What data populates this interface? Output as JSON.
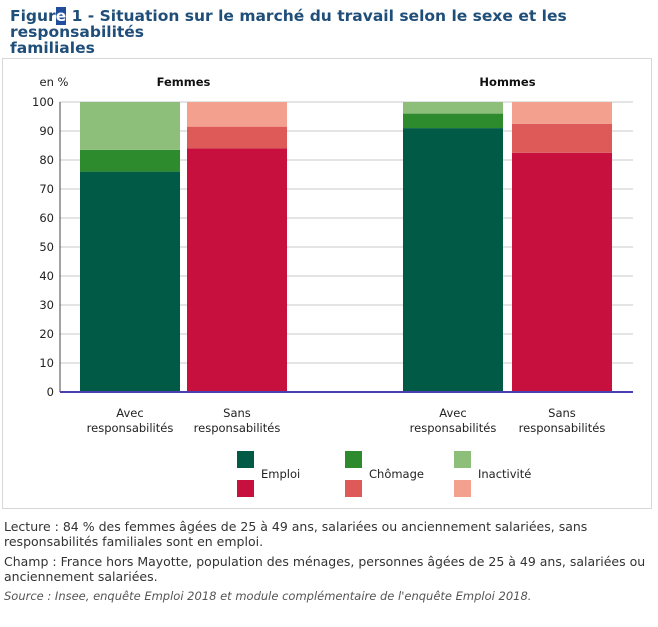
{
  "figure": {
    "title_prefix": "Figur",
    "title_highlight": "e",
    "title_rest": " 1 - Situation sur le marché du travail selon le sexe et les responsabilités",
    "title_line2": "familiales"
  },
  "chart_data": {
    "type": "bar",
    "stacked": true,
    "ylabel": "en %",
    "ylim": [
      0,
      100
    ],
    "yticks": [
      0,
      10,
      20,
      30,
      40,
      50,
      60,
      70,
      80,
      90,
      100
    ],
    "grid": true,
    "legend_position": "bottom",
    "groups": [
      {
        "label": "Femmes",
        "bars": [
          {
            "label_line1": "Avec",
            "label_line2": "responsabilités",
            "segments": [
              {
                "name": "Emploi",
                "value": 76,
                "color": "#005a46"
              },
              {
                "name": "Chômage",
                "value": 7.5,
                "color": "#2d8a2d"
              },
              {
                "name": "Inactivité",
                "value": 16.5,
                "color": "#8dbf7a"
              }
            ]
          },
          {
            "label_line1": "Sans",
            "label_line2": "responsabilités",
            "segments": [
              {
                "name": "Emploi",
                "value": 84,
                "color": "#c8103f"
              },
              {
                "name": "Chômage",
                "value": 7.5,
                "color": "#dd5a58"
              },
              {
                "name": "Inactivité",
                "value": 8.5,
                "color": "#f4a08e"
              }
            ]
          }
        ]
      },
      {
        "label": "Hommes",
        "bars": [
          {
            "label_line1": "Avec",
            "label_line2": "responsabilités",
            "segments": [
              {
                "name": "Emploi",
                "value": 91,
                "color": "#005a46"
              },
              {
                "name": "Chômage",
                "value": 5,
                "color": "#2d8a2d"
              },
              {
                "name": "Inactivité",
                "value": 4,
                "color": "#8dbf7a"
              }
            ]
          },
          {
            "label_line1": "Sans",
            "label_line2": "responsabilités",
            "segments": [
              {
                "name": "Emploi",
                "value": 82.5,
                "color": "#c8103f"
              },
              {
                "name": "Chômage",
                "value": 10,
                "color": "#dd5a58"
              },
              {
                "name": "Inactivité",
                "value": 7.5,
                "color": "#f4a08e"
              }
            ]
          }
        ]
      }
    ],
    "legend": [
      {
        "label": "Emploi",
        "colors": [
          "#005a46",
          "#c8103f"
        ]
      },
      {
        "label": "Chômage",
        "colors": [
          "#2d8a2d",
          "#dd5a58"
        ]
      },
      {
        "label": "Inactivité",
        "colors": [
          "#8dbf7a",
          "#f4a08e"
        ]
      }
    ]
  },
  "notes": {
    "lecture": "Lecture : 84 % des femmes âgées de 25 à 49 ans, salariées ou anciennement salariées, sans responsabilités familiales sont en emploi.",
    "champ": "Champ : France hors Mayotte, population des ménages, personnes âgées de 25 à 49 ans, salariées ou anciennement salariées.",
    "source": "Source : Insee, enquête Emploi 2018 et module complémentaire de l'enquête Emploi 2018."
  }
}
